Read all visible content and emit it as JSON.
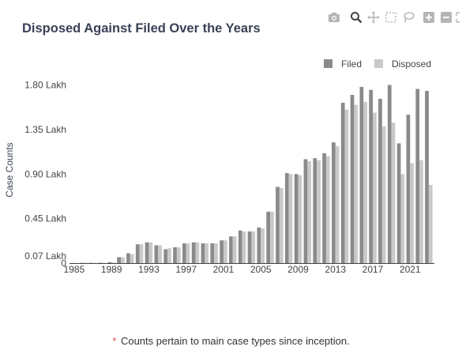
{
  "title": "Disposed Against Filed Over the Years",
  "footnote": {
    "asterisk": "*",
    "text": "Counts pertain to main case types since inception."
  },
  "toolbar": {
    "icons": [
      "camera-icon",
      "zoom-icon",
      "pan-icon",
      "box-select-icon",
      "lasso-icon",
      "zoom-in-icon",
      "zoom-out-icon",
      "autoscale-icon"
    ]
  },
  "colors": {
    "filed": "#8a8a8a",
    "disposed": "#c9c9c9",
    "title": "#3a4256",
    "axis_text": "#444444"
  },
  "chart_data": {
    "type": "bar",
    "xlabel": "",
    "ylabel": "Case Counts",
    "legend_position": "top-right",
    "grid": false,
    "x_ticks": [
      "1985",
      "1989",
      "1993",
      "1997",
      "2001",
      "2005",
      "2009",
      "2013",
      "2017",
      "2021"
    ],
    "x_tick_values": [
      1985,
      1989,
      1993,
      1997,
      2001,
      2005,
      2009,
      2013,
      2017,
      2021
    ],
    "y_ticks": [
      "0",
      "0.07 Lakh",
      "0.45 Lakh",
      "0.90 Lakh",
      "1.35 Lakh",
      "1.80 Lakh"
    ],
    "y_tick_values": [
      0,
      0.07,
      0.45,
      0.9,
      1.35,
      1.8
    ],
    "xlim": [
      1984.5,
      2023.6
    ],
    "ylim": [
      0,
      1.9
    ],
    "categories": [
      1985,
      1986,
      1987,
      1988,
      1989,
      1990,
      1991,
      1992,
      1993,
      1994,
      1995,
      1996,
      1997,
      1998,
      1999,
      2000,
      2001,
      2002,
      2003,
      2004,
      2005,
      2006,
      2007,
      2008,
      2009,
      2010,
      2011,
      2012,
      2013,
      2014,
      2015,
      2016,
      2017,
      2018,
      2019,
      2020,
      2021,
      2022,
      2023
    ],
    "series": [
      {
        "name": "Filed",
        "values": [
          0.002,
          0.003,
          0.003,
          0.004,
          0.01,
          0.06,
          0.1,
          0.19,
          0.21,
          0.18,
          0.14,
          0.16,
          0.2,
          0.21,
          0.2,
          0.2,
          0.23,
          0.27,
          0.33,
          0.32,
          0.36,
          0.52,
          0.77,
          0.91,
          0.9,
          1.05,
          1.06,
          1.11,
          1.22,
          1.62,
          1.7,
          1.78,
          1.75,
          1.66,
          1.8,
          1.21,
          1.5,
          1.76,
          1.74
        ]
      },
      {
        "name": "Disposed",
        "values": [
          0.001,
          0.002,
          0.002,
          0.003,
          0.006,
          0.06,
          0.09,
          0.19,
          0.21,
          0.18,
          0.15,
          0.16,
          0.2,
          0.21,
          0.2,
          0.2,
          0.23,
          0.27,
          0.32,
          0.32,
          0.35,
          0.52,
          0.76,
          0.9,
          0.89,
          1.03,
          1.04,
          1.08,
          1.18,
          1.55,
          1.6,
          1.63,
          1.52,
          1.38,
          1.42,
          0.9,
          1.01,
          1.04,
          0.79
        ]
      }
    ]
  }
}
